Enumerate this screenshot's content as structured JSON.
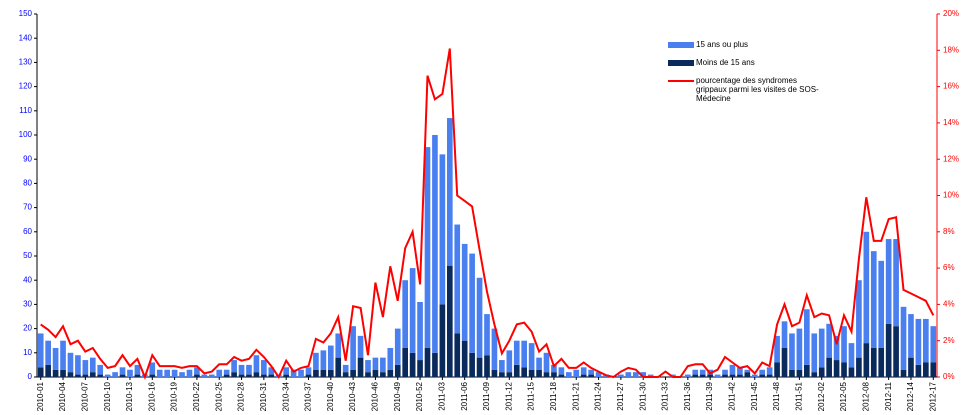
{
  "chart_data": {
    "type": "bar",
    "categories": [
      "2010-01",
      null,
      null,
      "2010-04",
      null,
      null,
      "2010-07",
      null,
      null,
      "2010-10",
      null,
      null,
      "2010-13",
      null,
      null,
      "2010-16",
      null,
      null,
      "2010-19",
      null,
      null,
      "2010-22",
      null,
      null,
      "2010-25",
      null,
      null,
      "2010-28",
      null,
      null,
      "2010-31",
      null,
      null,
      "2010-34",
      null,
      null,
      "2010-37",
      null,
      null,
      "2010-40",
      null,
      null,
      "2010-43",
      null,
      null,
      "2010-46",
      null,
      null,
      "2010-49",
      null,
      null,
      "2010-52",
      null,
      null,
      "2011-03",
      null,
      null,
      "2011-06",
      null,
      null,
      "2011-09",
      null,
      null,
      "2011-12",
      null,
      null,
      "2011-15",
      null,
      null,
      "2011-18",
      null,
      null,
      "2011-21",
      null,
      null,
      "2011-24",
      null,
      null,
      "2011-27",
      null,
      null,
      "2011-30",
      null,
      null,
      "2011-33",
      null,
      null,
      "2011-36",
      null,
      null,
      "2011-39",
      null,
      null,
      "2011-42",
      null,
      null,
      "2011-45",
      null,
      null,
      "2011-48",
      null,
      null,
      "2011-51",
      null,
      null,
      "2012-02",
      null,
      null,
      "2012-05",
      null,
      null,
      "2012-08",
      null,
      null,
      "2012-11",
      null,
      null,
      "2012-14",
      null,
      null,
      "2012-17"
    ],
    "series": [
      {
        "name": "15 ans ou plus",
        "color": "#4a7ff0",
        "stack": true,
        "values": [
          14,
          10,
          9,
          12,
          8,
          8,
          6,
          6,
          4,
          1,
          2,
          3,
          3,
          4,
          1,
          5,
          3,
          3,
          3,
          2,
          3,
          3,
          1,
          1,
          3,
          2,
          5,
          4,
          4,
          7,
          6,
          3,
          1,
          3,
          3,
          3,
          3,
          7,
          8,
          10,
          10,
          3,
          18,
          9,
          5,
          5,
          6,
          9,
          15,
          28,
          35,
          24,
          83,
          90,
          62,
          61,
          45,
          40,
          41,
          33,
          17,
          17,
          5,
          9,
          10,
          11,
          11,
          5,
          8,
          3,
          3,
          2,
          3,
          3,
          2,
          2,
          1,
          0,
          1,
          2,
          2,
          2,
          1,
          0,
          0,
          1,
          0,
          1,
          2,
          2,
          2,
          1,
          2,
          4,
          3,
          1,
          1,
          2,
          3,
          11,
          11,
          15,
          17,
          23,
          16,
          16,
          14,
          10,
          15,
          10,
          32,
          46,
          40,
          36,
          35,
          36,
          26,
          18,
          19,
          18,
          15
        ]
      },
      {
        "name": "Moins de 15 ans",
        "color": "#0b2a5c",
        "stack": true,
        "values": [
          4,
          5,
          3,
          3,
          2,
          1,
          1,
          2,
          1,
          0,
          0,
          1,
          0,
          1,
          0,
          1,
          0,
          0,
          0,
          0,
          0,
          1,
          0,
          0,
          0,
          1,
          2,
          1,
          1,
          2,
          1,
          1,
          0,
          1,
          0,
          0,
          1,
          3,
          3,
          3,
          8,
          2,
          3,
          8,
          2,
          3,
          2,
          3,
          5,
          12,
          10,
          7,
          12,
          10,
          30,
          46,
          18,
          15,
          10,
          8,
          9,
          3,
          2,
          2,
          5,
          4,
          3,
          3,
          2,
          2,
          1,
          0,
          0,
          1,
          1,
          0,
          0,
          0,
          0,
          0,
          0,
          0,
          0,
          0,
          0,
          0,
          0,
          0,
          1,
          1,
          1,
          0,
          1,
          1,
          1,
          2,
          0,
          1,
          1,
          6,
          12,
          3,
          3,
          5,
          2,
          4,
          8,
          7,
          6,
          4,
          8,
          14,
          12,
          12,
          22,
          21,
          3,
          8,
          5,
          6,
          6
        ]
      },
      {
        "name": "pourcentage des syndromes grippaux parmi les visites de SOS-Médecine",
        "color": "#ff0000",
        "type": "line",
        "axis": "y2",
        "values": [
          2.9,
          2.6,
          2.2,
          2.8,
          1.8,
          2.0,
          1.4,
          1.6,
          1.0,
          0.5,
          0.6,
          1.2,
          0.6,
          1.0,
          0.0,
          1.2,
          0.6,
          0.6,
          0.6,
          0.5,
          0.6,
          0.6,
          0.2,
          0.3,
          0.7,
          0.7,
          1.1,
          0.9,
          1.0,
          1.5,
          1.1,
          0.6,
          0.0,
          0.9,
          0.3,
          0.5,
          0.6,
          2.1,
          1.9,
          2.4,
          3.3,
          0.9,
          3.9,
          3.8,
          1.2,
          5.2,
          3.3,
          6.1,
          4.2,
          7.1,
          8.0,
          5.1,
          16.6,
          15.3,
          15.6,
          18.1,
          10.0,
          9.7,
          9.4,
          7.0,
          4.7,
          2.9,
          1.3,
          2.0,
          2.9,
          3.0,
          2.5,
          1.4,
          1.8,
          0.6,
          1.0,
          0.5,
          0.5,
          0.8,
          0.5,
          0.3,
          0.1,
          0.0,
          0.3,
          0.5,
          0.4,
          0.0,
          0.0,
          0.0,
          0.3,
          0.0,
          0.0,
          0.6,
          0.7,
          0.7,
          0.2,
          0.4,
          1.1,
          0.8,
          0.5,
          0.6,
          0.2,
          0.8,
          0.6,
          2.9,
          4.0,
          2.8,
          3.0,
          4.5,
          3.3,
          3.5,
          3.4,
          1.8,
          3.4,
          2.5,
          6.5,
          9.9,
          7.5,
          7.5,
          8.7,
          8.8,
          4.8,
          4.6,
          4.4,
          4.2,
          3.4
        ]
      }
    ],
    "ylim": [
      0,
      150
    ],
    "yticks": [
      0,
      10,
      20,
      30,
      40,
      50,
      60,
      70,
      80,
      90,
      100,
      110,
      120,
      130,
      140,
      150
    ],
    "y2lim": [
      0,
      20
    ],
    "y2ticks": [
      {
        "value": 0,
        "label": "0%"
      },
      {
        "value": 2,
        "label": "2%"
      },
      {
        "value": 4,
        "label": "4%"
      },
      {
        "value": 6,
        "label": "6%"
      },
      {
        "value": 8,
        "label": "8%"
      },
      {
        "value": 10,
        "label": "10%"
      },
      {
        "value": 12,
        "label": "12%"
      },
      {
        "value": 14,
        "label": "14%"
      },
      {
        "value": 16,
        "label": "16%"
      },
      {
        "value": 18,
        "label": "18%"
      },
      {
        "value": 20,
        "label": "20%"
      }
    ]
  }
}
